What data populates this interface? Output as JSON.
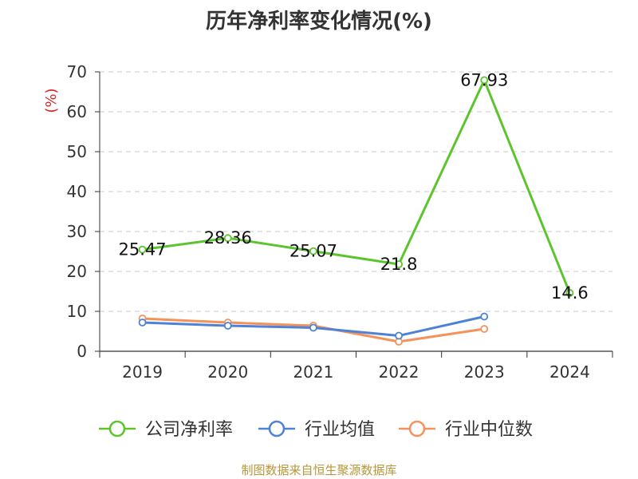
{
  "chart_data": {
    "type": "line",
    "title": "历年净利率变化情况(%)",
    "ylabel": "(%)",
    "xlabel": "",
    "categories": [
      "2019",
      "2020",
      "2021",
      "2022",
      "2023",
      "2024"
    ],
    "ylim": [
      0,
      70
    ],
    "yticks": [
      0,
      10,
      20,
      30,
      40,
      50,
      60,
      70
    ],
    "grid": true,
    "legend_position": "bottom",
    "series": [
      {
        "name": "公司净利率",
        "color": "#5cc42d",
        "values": [
          25.47,
          28.36,
          25.07,
          21.8,
          67.93,
          14.6
        ],
        "show_labels": true
      },
      {
        "name": "行业均值",
        "color": "#4d82d6",
        "values": [
          7.2,
          6.4,
          5.9,
          3.9,
          8.7,
          null
        ],
        "show_labels": false
      },
      {
        "name": "行业中位数",
        "color": "#f4925b",
        "values": [
          8.2,
          7.2,
          6.4,
          2.4,
          5.6,
          null
        ],
        "show_labels": false
      }
    ]
  },
  "footer": {
    "source": "制图数据来自恒生聚源数据库"
  }
}
